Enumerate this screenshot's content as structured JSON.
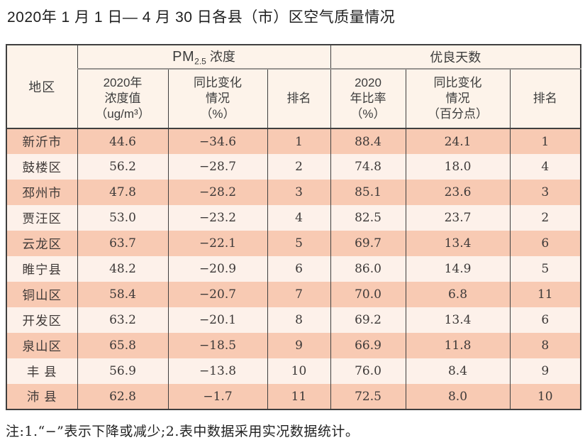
{
  "page": {
    "title": "2020年 1 月 1 日— 4 月 30 日各县（市）区空气质量情况",
    "note": "注:1.“−”表示下降或减少;2.表中数据采用实况数据统计。"
  },
  "colors": {
    "row_odd_bg": "#f8cab3",
    "row_even_bg": "#fdf1ea",
    "header_bg": "#fdf3ea",
    "border": "#3f3f3f",
    "group_divider": "#979390"
  },
  "table": {
    "region_header": "地区",
    "groups": {
      "pm25": {
        "prefix": "PM",
        "sub": "2.5",
        "suffix": " 浓度"
      },
      "good_days": "优良天数"
    },
    "columns": {
      "pm_value": "2020年\n浓度值\n（ug/m³）",
      "pm_change": "同比变化\n情况\n（%）",
      "pm_rank": "排名",
      "good_rate": "2020\n年比率\n（%）",
      "good_change": "同比变化\n情况\n（百分点）",
      "good_rank": "排名"
    },
    "rows": [
      {
        "region": "新沂市",
        "pm_value": "44.6",
        "pm_change": "−34.6",
        "pm_rank": "1",
        "good_rate": "88.4",
        "good_change": "24.1",
        "good_rank": "1"
      },
      {
        "region": "鼓楼区",
        "pm_value": "56.2",
        "pm_change": "−28.7",
        "pm_rank": "2",
        "good_rate": "74.8",
        "good_change": "18.0",
        "good_rank": "4"
      },
      {
        "region": "邳州市",
        "pm_value": "47.8",
        "pm_change": "−28.2",
        "pm_rank": "3",
        "good_rate": "85.1",
        "good_change": "23.6",
        "good_rank": "3"
      },
      {
        "region": "贾汪区",
        "pm_value": "53.0",
        "pm_change": "−23.2",
        "pm_rank": "4",
        "good_rate": "82.5",
        "good_change": "23.7",
        "good_rank": "2"
      },
      {
        "region": "云龙区",
        "pm_value": "63.7",
        "pm_change": "−22.1",
        "pm_rank": "5",
        "good_rate": "69.7",
        "good_change": "13.4",
        "good_rank": "6"
      },
      {
        "region": "睢宁县",
        "pm_value": "48.2",
        "pm_change": "−20.9",
        "pm_rank": "6",
        "good_rate": "86.0",
        "good_change": "14.9",
        "good_rank": "5"
      },
      {
        "region": "铜山区",
        "pm_value": "58.4",
        "pm_change": "−20.7",
        "pm_rank": "7",
        "good_rate": "70.0",
        "good_change": "6.8",
        "good_rank": "11"
      },
      {
        "region": "开发区",
        "pm_value": "63.2",
        "pm_change": "−20.1",
        "pm_rank": "8",
        "good_rate": "69.2",
        "good_change": "13.4",
        "good_rank": "6"
      },
      {
        "region": "泉山区",
        "pm_value": "65.8",
        "pm_change": "−18.5",
        "pm_rank": "9",
        "good_rate": "66.9",
        "good_change": "11.8",
        "good_rank": "8"
      },
      {
        "region": "丰 县",
        "pm_value": "56.9",
        "pm_change": "−13.8",
        "pm_rank": "10",
        "good_rate": "76.0",
        "good_change": "8.4",
        "good_rank": "9"
      },
      {
        "region": "沛 县",
        "pm_value": "62.8",
        "pm_change": "−1.7",
        "pm_rank": "11",
        "good_rate": "72.5",
        "good_change": "8.0",
        "good_rank": "10"
      }
    ]
  }
}
